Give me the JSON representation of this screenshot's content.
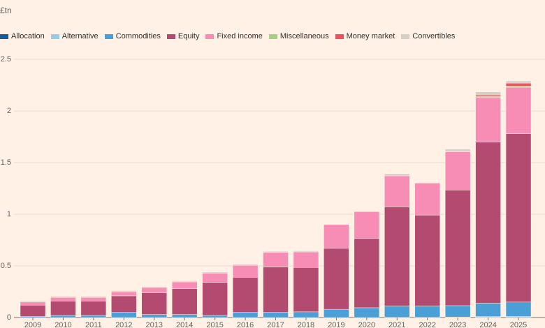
{
  "chart_data": {
    "type": "bar",
    "stacked": true,
    "title": "",
    "xlabel": "",
    "ylabel": "£tn",
    "categories": [
      "2009",
      "2010",
      "2011",
      "2012",
      "2013",
      "2014",
      "2015",
      "2016",
      "2017",
      "2018",
      "2019",
      "2020",
      "2021",
      "2022",
      "2023",
      "2024",
      "2025"
    ],
    "ylim": [
      0,
      2.5
    ],
    "yticks": [
      0,
      0.5,
      1,
      1.5,
      2,
      2.5
    ],
    "ytick_labels": [
      "0",
      "0.5",
      "1",
      "1.5",
      "2",
      "2.5"
    ],
    "grid": true,
    "legend_position": "top-left",
    "series": [
      {
        "name": "Allocation",
        "color": "#1c5a96",
        "values": [
          0,
          0,
          0,
          0,
          0,
          0,
          0,
          0,
          0,
          0,
          0,
          0,
          0.002,
          0.002,
          0.003,
          0.004,
          0.005
        ]
      },
      {
        "name": "Alternative",
        "color": "#96cce9",
        "values": [
          0,
          0,
          0,
          0,
          0,
          0,
          0,
          0,
          0,
          0,
          0,
          0,
          0,
          0,
          0.002,
          0.005,
          0.005
        ]
      },
      {
        "name": "Commodities",
        "color": "#4aa0d6",
        "values": [
          0.01,
          0.02,
          0.02,
          0.05,
          0.03,
          0.03,
          0.02,
          0.05,
          0.05,
          0.055,
          0.08,
          0.095,
          0.11,
          0.11,
          0.11,
          0.13,
          0.14
        ]
      },
      {
        "name": "Equity",
        "color": "#b34a6f",
        "values": [
          0.11,
          0.14,
          0.14,
          0.16,
          0.21,
          0.25,
          0.32,
          0.34,
          0.44,
          0.43,
          0.59,
          0.67,
          0.96,
          0.88,
          1.12,
          1.56,
          1.63
        ]
      },
      {
        "name": "Fixed income",
        "color": "#f78db4",
        "values": [
          0.03,
          0.035,
          0.035,
          0.04,
          0.05,
          0.065,
          0.09,
          0.115,
          0.14,
          0.15,
          0.23,
          0.26,
          0.3,
          0.31,
          0.37,
          0.43,
          0.45
        ]
      },
      {
        "name": "Miscellaneous",
        "color": "#a8cf81",
        "values": [
          0,
          0,
          0,
          0,
          0,
          0,
          0,
          0,
          0,
          0,
          0,
          0,
          0,
          0,
          0.005,
          0.01,
          0.01
        ]
      },
      {
        "name": "Money market",
        "color": "#e9545e",
        "values": [
          0,
          0,
          0,
          0,
          0,
          0,
          0,
          0,
          0,
          0,
          0,
          0,
          0,
          0,
          0,
          0.015,
          0.03
        ]
      },
      {
        "name": "Convertibles",
        "color": "#d6cfc8",
        "values": [
          0.01,
          0.01,
          0.01,
          0.01,
          0.01,
          0.01,
          0.01,
          0.01,
          0.01,
          0.01,
          0.005,
          0.005,
          0.02,
          0.005,
          0.02,
          0.03,
          0.02
        ]
      }
    ]
  }
}
